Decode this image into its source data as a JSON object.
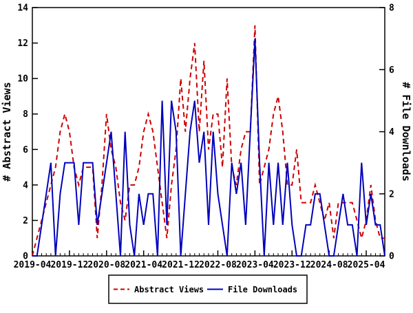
{
  "chart_data": {
    "type": "line",
    "title": "",
    "xlabel": "",
    "y_left_label": "# Abstract Views",
    "y_right_label": "# File Downloads",
    "y_left_range": [
      0,
      14
    ],
    "y_right_range": [
      0,
      8
    ],
    "y_left_ticks": [
      0,
      2,
      4,
      6,
      8,
      10,
      12,
      14
    ],
    "y_right_ticks": [
      0,
      2,
      4,
      6,
      8
    ],
    "x_major_every": 8,
    "x_major_tick_labels": [
      "2019-04",
      "2019-12",
      "2020-08",
      "2021-04",
      "2021-12",
      "2022-08",
      "2023-04",
      "2023-12",
      "2024-08",
      "2025-04"
    ],
    "grid": false,
    "legend_position": "bottom-center",
    "months": [
      "2019-04",
      "2019-05",
      "2019-06",
      "2019-07",
      "2019-08",
      "2019-09",
      "2019-10",
      "2019-11",
      "2019-12",
      "2020-01",
      "2020-02",
      "2020-03",
      "2020-04",
      "2020-05",
      "2020-06",
      "2020-07",
      "2020-08",
      "2020-09",
      "2020-10",
      "2020-11",
      "2020-12",
      "2021-01",
      "2021-02",
      "2021-03",
      "2021-04",
      "2021-05",
      "2021-06",
      "2021-07",
      "2021-08",
      "2021-09",
      "2021-10",
      "2021-11",
      "2021-12",
      "2022-01",
      "2022-02",
      "2022-03",
      "2022-04",
      "2022-05",
      "2022-06",
      "2022-07",
      "2022-08",
      "2022-09",
      "2022-10",
      "2022-11",
      "2022-12",
      "2023-01",
      "2023-02",
      "2023-03",
      "2023-04",
      "2023-05",
      "2023-06",
      "2023-07",
      "2023-08",
      "2023-09",
      "2023-10",
      "2023-11",
      "2023-12",
      "2024-01",
      "2024-02",
      "2024-03",
      "2024-04",
      "2024-05",
      "2024-06",
      "2024-07",
      "2024-08",
      "2024-09",
      "2024-10",
      "2024-11",
      "2024-12",
      "2025-01",
      "2025-02",
      "2025-03",
      "2025-04",
      "2025-05",
      "2025-06",
      "2025-07",
      "2025-08"
    ],
    "series": [
      {
        "name": "Abstract Views",
        "axis": "left",
        "color": "#cc0000",
        "style": "dashed",
        "values": [
          0,
          1,
          2,
          3,
          4,
          5,
          7,
          8,
          7,
          5,
          4,
          5,
          5,
          5,
          1,
          4,
          8,
          6,
          5,
          3,
          2,
          4,
          4,
          5,
          7,
          8,
          7,
          5,
          3,
          1,
          4,
          6,
          10,
          7,
          10,
          12,
          7,
          11,
          6,
          8,
          8,
          5,
          10,
          5,
          4,
          6,
          7,
          7,
          13,
          4,
          5,
          6,
          8,
          9,
          7,
          4,
          4,
          6,
          3,
          3,
          3,
          4,
          3,
          2,
          3,
          1,
          3,
          3,
          3,
          3,
          2,
          1,
          2,
          4,
          2,
          1,
          1
        ]
      },
      {
        "name": "File Downloads",
        "axis": "right",
        "color": "#0000bb",
        "style": "solid",
        "values": [
          0,
          0,
          1,
          2,
          3,
          0,
          2,
          3,
          3,
          3,
          1,
          3,
          3,
          3,
          1,
          2,
          3,
          4,
          2,
          0,
          4,
          1,
          0,
          2,
          1,
          2,
          2,
          0,
          5,
          1,
          5,
          4,
          0,
          2,
          4,
          5,
          3,
          4,
          1,
          4,
          2,
          1,
          0,
          3,
          2,
          3,
          1,
          4,
          7,
          3,
          0,
          3,
          1,
          3,
          1,
          3,
          1,
          0,
          0,
          1,
          1,
          2,
          2,
          1,
          0,
          0,
          1,
          2,
          1,
          1,
          0,
          3,
          1,
          2,
          1,
          1,
          0
        ]
      }
    ],
    "legend": {
      "abstract_views_label": "Abstract Views",
      "file_downloads_label": "File Downloads"
    }
  },
  "colors": {
    "abstract_views": "#cc0000",
    "file_downloads": "#0000bb",
    "axis": "#000000",
    "background": "#ffffff"
  }
}
